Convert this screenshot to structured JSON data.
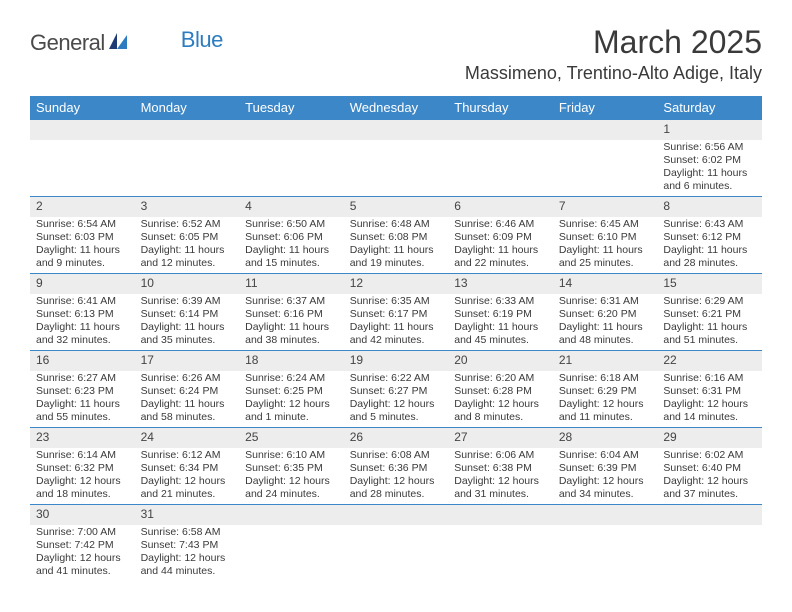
{
  "brand": {
    "part1": "General",
    "part2": "Blue"
  },
  "title": "March 2025",
  "location": "Massimeno, Trentino-Alto Adige, Italy",
  "colors": {
    "header_bg": "#3b87c8",
    "header_fg": "#ffffff",
    "daynum_bg": "#ededed",
    "cell_border": "#3b87c8",
    "text": "#3a3a3a",
    "logo_blue": "#2e7cc0"
  },
  "weekdays": [
    "Sunday",
    "Monday",
    "Tuesday",
    "Wednesday",
    "Thursday",
    "Friday",
    "Saturday"
  ],
  "weeks": [
    [
      null,
      null,
      null,
      null,
      null,
      null,
      {
        "n": "1",
        "sr": "Sunrise: 6:56 AM",
        "ss": "Sunset: 6:02 PM",
        "dl": "Daylight: 11 hours and 6 minutes."
      }
    ],
    [
      {
        "n": "2",
        "sr": "Sunrise: 6:54 AM",
        "ss": "Sunset: 6:03 PM",
        "dl": "Daylight: 11 hours and 9 minutes."
      },
      {
        "n": "3",
        "sr": "Sunrise: 6:52 AM",
        "ss": "Sunset: 6:05 PM",
        "dl": "Daylight: 11 hours and 12 minutes."
      },
      {
        "n": "4",
        "sr": "Sunrise: 6:50 AM",
        "ss": "Sunset: 6:06 PM",
        "dl": "Daylight: 11 hours and 15 minutes."
      },
      {
        "n": "5",
        "sr": "Sunrise: 6:48 AM",
        "ss": "Sunset: 6:08 PM",
        "dl": "Daylight: 11 hours and 19 minutes."
      },
      {
        "n": "6",
        "sr": "Sunrise: 6:46 AM",
        "ss": "Sunset: 6:09 PM",
        "dl": "Daylight: 11 hours and 22 minutes."
      },
      {
        "n": "7",
        "sr": "Sunrise: 6:45 AM",
        "ss": "Sunset: 6:10 PM",
        "dl": "Daylight: 11 hours and 25 minutes."
      },
      {
        "n": "8",
        "sr": "Sunrise: 6:43 AM",
        "ss": "Sunset: 6:12 PM",
        "dl": "Daylight: 11 hours and 28 minutes."
      }
    ],
    [
      {
        "n": "9",
        "sr": "Sunrise: 6:41 AM",
        "ss": "Sunset: 6:13 PM",
        "dl": "Daylight: 11 hours and 32 minutes."
      },
      {
        "n": "10",
        "sr": "Sunrise: 6:39 AM",
        "ss": "Sunset: 6:14 PM",
        "dl": "Daylight: 11 hours and 35 minutes."
      },
      {
        "n": "11",
        "sr": "Sunrise: 6:37 AM",
        "ss": "Sunset: 6:16 PM",
        "dl": "Daylight: 11 hours and 38 minutes."
      },
      {
        "n": "12",
        "sr": "Sunrise: 6:35 AM",
        "ss": "Sunset: 6:17 PM",
        "dl": "Daylight: 11 hours and 42 minutes."
      },
      {
        "n": "13",
        "sr": "Sunrise: 6:33 AM",
        "ss": "Sunset: 6:19 PM",
        "dl": "Daylight: 11 hours and 45 minutes."
      },
      {
        "n": "14",
        "sr": "Sunrise: 6:31 AM",
        "ss": "Sunset: 6:20 PM",
        "dl": "Daylight: 11 hours and 48 minutes."
      },
      {
        "n": "15",
        "sr": "Sunrise: 6:29 AM",
        "ss": "Sunset: 6:21 PM",
        "dl": "Daylight: 11 hours and 51 minutes."
      }
    ],
    [
      {
        "n": "16",
        "sr": "Sunrise: 6:27 AM",
        "ss": "Sunset: 6:23 PM",
        "dl": "Daylight: 11 hours and 55 minutes."
      },
      {
        "n": "17",
        "sr": "Sunrise: 6:26 AM",
        "ss": "Sunset: 6:24 PM",
        "dl": "Daylight: 11 hours and 58 minutes."
      },
      {
        "n": "18",
        "sr": "Sunrise: 6:24 AM",
        "ss": "Sunset: 6:25 PM",
        "dl": "Daylight: 12 hours and 1 minute."
      },
      {
        "n": "19",
        "sr": "Sunrise: 6:22 AM",
        "ss": "Sunset: 6:27 PM",
        "dl": "Daylight: 12 hours and 5 minutes."
      },
      {
        "n": "20",
        "sr": "Sunrise: 6:20 AM",
        "ss": "Sunset: 6:28 PM",
        "dl": "Daylight: 12 hours and 8 minutes."
      },
      {
        "n": "21",
        "sr": "Sunrise: 6:18 AM",
        "ss": "Sunset: 6:29 PM",
        "dl": "Daylight: 12 hours and 11 minutes."
      },
      {
        "n": "22",
        "sr": "Sunrise: 6:16 AM",
        "ss": "Sunset: 6:31 PM",
        "dl": "Daylight: 12 hours and 14 minutes."
      }
    ],
    [
      {
        "n": "23",
        "sr": "Sunrise: 6:14 AM",
        "ss": "Sunset: 6:32 PM",
        "dl": "Daylight: 12 hours and 18 minutes."
      },
      {
        "n": "24",
        "sr": "Sunrise: 6:12 AM",
        "ss": "Sunset: 6:34 PM",
        "dl": "Daylight: 12 hours and 21 minutes."
      },
      {
        "n": "25",
        "sr": "Sunrise: 6:10 AM",
        "ss": "Sunset: 6:35 PM",
        "dl": "Daylight: 12 hours and 24 minutes."
      },
      {
        "n": "26",
        "sr": "Sunrise: 6:08 AM",
        "ss": "Sunset: 6:36 PM",
        "dl": "Daylight: 12 hours and 28 minutes."
      },
      {
        "n": "27",
        "sr": "Sunrise: 6:06 AM",
        "ss": "Sunset: 6:38 PM",
        "dl": "Daylight: 12 hours and 31 minutes."
      },
      {
        "n": "28",
        "sr": "Sunrise: 6:04 AM",
        "ss": "Sunset: 6:39 PM",
        "dl": "Daylight: 12 hours and 34 minutes."
      },
      {
        "n": "29",
        "sr": "Sunrise: 6:02 AM",
        "ss": "Sunset: 6:40 PM",
        "dl": "Daylight: 12 hours and 37 minutes."
      }
    ],
    [
      {
        "n": "30",
        "sr": "Sunrise: 7:00 AM",
        "ss": "Sunset: 7:42 PM",
        "dl": "Daylight: 12 hours and 41 minutes."
      },
      {
        "n": "31",
        "sr": "Sunrise: 6:58 AM",
        "ss": "Sunset: 7:43 PM",
        "dl": "Daylight: 12 hours and 44 minutes."
      },
      null,
      null,
      null,
      null,
      null
    ]
  ]
}
